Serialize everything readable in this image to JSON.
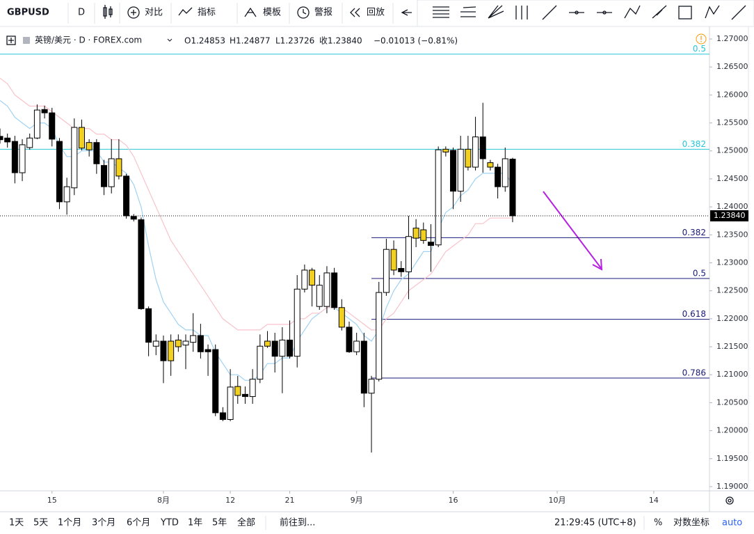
{
  "toolbar": {
    "symbol": "GBPUSD",
    "interval": "D",
    "compare": "对比",
    "indicators": "指标",
    "templates": "模板",
    "alerts": "警报",
    "replay": "回放"
  },
  "header": {
    "instrument": "英镑/美元 · D · FOREX.com",
    "open": "O1.24853",
    "high": "H1.24877",
    "low": "L1.23726",
    "close": "收1.23840",
    "change": "−0.01013 (−0.81%)"
  },
  "footer": {
    "ranges": [
      "1天",
      "5天",
      "1个月",
      "3个月",
      "6个月",
      "YTD",
      "1年",
      "5年",
      "全部"
    ],
    "goto": "前往到...",
    "clock": "21:29:45 (UTC+8)",
    "percent": "%",
    "log": "对数坐标",
    "auto": "auto"
  },
  "chart_data": {
    "type": "candlestick",
    "xlim": [
      0,
      95.5
    ],
    "xticks": [
      {
        "value": 7,
        "label": "15"
      },
      {
        "value": 22,
        "label": "8月"
      },
      {
        "value": 31,
        "label": "12"
      },
      {
        "value": 39,
        "label": "21"
      },
      {
        "value": 48,
        "label": "9月"
      },
      {
        "value": 61,
        "label": "16"
      },
      {
        "value": 75,
        "label": "10月"
      },
      {
        "value": 88,
        "label": "14"
      }
    ],
    "ylim": [
      1.18925,
      1.27224
    ],
    "yticks": [
      {
        "value": 1.27,
        "label": "1.27000"
      },
      {
        "value": 1.265,
        "label": "1.26500"
      },
      {
        "value": 1.26,
        "label": "1.26000"
      },
      {
        "value": 1.255,
        "label": "1.25500"
      },
      {
        "value": 1.25,
        "label": "1.25000"
      },
      {
        "value": 1.245,
        "label": "1.24500"
      },
      {
        "value": 1.24,
        "label": "1.24000"
      },
      {
        "value": 1.235,
        "label": "1.23500"
      },
      {
        "value": 1.23,
        "label": "1.23000"
      },
      {
        "value": 1.225,
        "label": "1.22500"
      },
      {
        "value": 1.22,
        "label": "1.22000"
      },
      {
        "value": 1.215,
        "label": "1.21500"
      },
      {
        "value": 1.21,
        "label": "1.21000"
      },
      {
        "value": 1.205,
        "label": "1.20500"
      },
      {
        "value": 1.2,
        "label": "1.20000"
      },
      {
        "value": 1.195,
        "label": "1.19500"
      },
      {
        "value": 1.19,
        "label": "1.19000"
      }
    ],
    "grid": false,
    "candles": {
      "x": [
        0,
        1,
        2,
        3,
        4,
        5,
        6,
        7,
        8,
        9,
        10,
        11,
        12,
        13,
        14,
        15,
        16,
        17,
        18,
        19,
        20,
        21,
        22,
        23,
        24,
        25,
        26,
        27,
        28,
        29,
        30,
        31,
        32,
        33,
        34,
        35,
        36,
        37,
        38,
        39,
        40,
        41,
        42,
        43,
        44,
        45,
        46,
        47,
        48,
        49,
        50,
        51,
        52,
        53,
        54,
        55,
        56,
        57,
        58,
        59,
        60,
        61,
        62,
        63,
        64,
        65,
        66,
        67,
        68,
        69
      ],
      "open": [
        1.2526,
        1.2523,
        1.2517,
        1.2461,
        1.2506,
        1.2523,
        1.2574,
        1.2568,
        1.2517,
        1.2409,
        1.2434,
        1.2542,
        1.2515,
        1.2515,
        1.2474,
        1.2436,
        1.2486,
        1.2455,
        1.2383,
        1.2377,
        1.2218,
        1.2151,
        1.216,
        1.216,
        1.2162,
        1.2153,
        1.2158,
        1.217,
        1.2145,
        1.2145,
        1.2032,
        1.202,
        1.2063,
        1.2065,
        1.2061,
        1.2092,
        1.2151,
        1.216,
        1.2133,
        1.2162,
        1.2133,
        1.2253,
        1.226,
        1.2222,
        1.2222,
        1.2282,
        1.222,
        1.2185,
        1.2141,
        1.216,
        1.2067,
        1.2092,
        1.2247,
        1.2287,
        1.229,
        1.2284,
        1.2344,
        1.234,
        1.2337,
        1.2332,
        1.2498,
        1.2501,
        1.2428,
        1.2471,
        1.2471,
        1.2525,
        1.2479,
        1.2471,
        1.2436,
        1.24853
      ],
      "high": [
        1.254,
        1.2531,
        1.2527,
        1.2521,
        1.2531,
        1.2583,
        1.2581,
        1.2577,
        1.2523,
        1.2452,
        1.2558,
        1.2556,
        1.2521,
        1.2521,
        1.2484,
        1.2521,
        1.2521,
        1.2459,
        1.2387,
        1.2381,
        1.2222,
        1.2172,
        1.217,
        1.2172,
        1.2172,
        1.2172,
        1.221,
        1.2191,
        1.2154,
        1.2154,
        1.2042,
        1.211,
        1.2098,
        1.2079,
        1.211,
        1.2172,
        1.2178,
        1.2175,
        1.2185,
        1.2197,
        1.2278,
        1.2297,
        1.2291,
        1.2278,
        1.2294,
        1.2291,
        1.2235,
        1.2195,
        1.2175,
        1.2175,
        1.2098,
        1.2266,
        1.2343,
        1.234,
        1.2303,
        1.2384,
        1.2378,
        1.2372,
        1.2369,
        1.2508,
        1.2508,
        1.2506,
        1.2527,
        1.2527,
        1.2561,
        1.2586,
        1.2484,
        1.2477,
        1.2506,
        1.24877
      ],
      "low": [
        1.2513,
        1.2506,
        1.2442,
        1.2446,
        1.2502,
        1.2521,
        1.2558,
        1.2508,
        1.2396,
        1.2386,
        1.2421,
        1.2501,
        1.249,
        1.2459,
        1.2421,
        1.2424,
        1.2449,
        1.2379,
        1.2374,
        1.2216,
        1.2133,
        1.2135,
        1.2085,
        1.2098,
        1.2141,
        1.211,
        1.2141,
        1.2129,
        1.2098,
        1.2026,
        1.2017,
        1.2017,
        1.2048,
        1.2048,
        1.2048,
        1.2085,
        1.2148,
        1.2104,
        1.2067,
        1.2129,
        1.2113,
        1.2247,
        1.2222,
        1.2216,
        1.221,
        1.2216,
        1.2179,
        1.2139,
        1.2135,
        1.2042,
        1.1961,
        1.2088,
        1.2241,
        1.2278,
        1.2275,
        1.2235,
        1.2328,
        1.2334,
        1.2284,
        1.2328,
        1.249,
        1.2396,
        1.2409,
        1.2465,
        1.2465,
        1.2461,
        1.2465,
        1.2415,
        1.2427,
        1.23726
      ],
      "close": [
        1.252,
        1.2516,
        1.2461,
        1.2511,
        1.2523,
        1.2573,
        1.2568,
        1.2521,
        1.2409,
        1.2436,
        1.2542,
        1.2505,
        1.2502,
        1.2477,
        1.2436,
        1.2486,
        1.2455,
        1.2384,
        1.2378,
        1.2218,
        1.2158,
        1.216,
        1.2125,
        1.2125,
        1.215,
        1.216,
        1.217,
        1.2141,
        1.2141,
        1.2032,
        1.202,
        1.2078,
        1.2079,
        1.2061,
        1.2092,
        1.2151,
        1.216,
        1.2133,
        1.2162,
        1.2133,
        1.2253,
        1.2287,
        1.2287,
        1.226,
        1.2282,
        1.222,
        1.2185,
        1.2141,
        1.216,
        1.2067,
        1.2092,
        1.2247,
        1.2324,
        1.2324,
        1.2284,
        1.2347,
        1.2362,
        1.2359,
        1.2331,
        1.2502,
        1.2503,
        1.2428,
        1.2503,
        1.2503,
        1.2525,
        1.2486,
        1.2471,
        1.2436,
        1.2486,
        1.2384
      ],
      "colors": [
        "#000000",
        "#000000",
        "#000000",
        "#ffffff",
        "#ffffff",
        "#ffffff",
        "#000000",
        "#000000",
        "#000000",
        "#ffffff",
        "#ffffff",
        "#f2d022",
        "#f2d022",
        "#000000",
        "#000000",
        "#ffffff",
        "#f2d022",
        "#000000",
        "#000000",
        "#000000",
        "#000000",
        "#ffffff",
        "#000000",
        "#f2d022",
        "#f2d022",
        "#ffffff",
        "#ffffff",
        "#000000",
        "#000000",
        "#000000",
        "#000000",
        "#ffffff",
        "#f2d022",
        "#000000",
        "#ffffff",
        "#ffffff",
        "#f2d022",
        "#000000",
        "#ffffff",
        "#000000",
        "#ffffff",
        "#ffffff",
        "#f2d022",
        "#ffffff",
        "#ffffff",
        "#000000",
        "#f2d022",
        "#000000",
        "#ffffff",
        "#000000",
        "#ffffff",
        "#ffffff",
        "#ffffff",
        "#f2d022",
        "#000000",
        "#ffffff",
        "#f2d022",
        "#f2d022",
        "#000000",
        "#ffffff",
        "#f2d022",
        "#000000",
        "#ffffff",
        "#f2d022",
        "#ffffff",
        "#000000",
        "#f2d022",
        "#000000",
        "#ffffff",
        "#000000"
      ]
    },
    "series": [
      {
        "color": "#9fd2f2",
        "values": [
          1.259,
          1.258,
          1.256,
          1.255,
          1.254,
          1.255,
          1.255,
          1.254,
          1.251,
          1.249,
          1.249,
          1.25,
          1.25,
          1.25,
          1.248,
          1.248,
          1.247,
          1.246,
          1.244,
          1.24,
          1.233,
          1.227,
          1.223,
          1.221,
          1.219,
          1.218,
          1.218,
          1.217,
          1.217,
          1.214,
          1.212,
          1.21,
          1.21,
          1.209,
          1.209,
          1.21,
          1.212,
          1.212,
          1.213,
          1.213,
          1.216,
          1.218,
          1.22,
          1.221,
          1.222,
          1.222,
          1.221,
          1.22,
          1.219,
          1.217,
          1.216,
          1.218,
          1.222,
          1.225,
          1.227,
          1.228,
          1.23,
          1.232,
          1.232,
          1.236,
          1.239,
          1.24,
          1.242,
          1.243,
          1.245,
          1.246,
          1.246,
          1.246,
          1.246,
          1.244
        ]
      },
      {
        "color": "#f8c3ca",
        "values": [
          1.263,
          1.262,
          1.26,
          1.259,
          1.258,
          1.258,
          1.258,
          1.257,
          1.256,
          1.255,
          1.254,
          1.254,
          1.254,
          1.253,
          1.253,
          1.252,
          1.252,
          1.251,
          1.249,
          1.246,
          1.243,
          1.24,
          1.237,
          1.234,
          1.232,
          1.23,
          1.228,
          1.226,
          1.224,
          1.222,
          1.22,
          1.219,
          1.218,
          1.218,
          1.218,
          1.218,
          1.219,
          1.219,
          1.219,
          1.219,
          1.22,
          1.22,
          1.221,
          1.221,
          1.222,
          1.222,
          1.222,
          1.221,
          1.22,
          1.219,
          1.218,
          1.218,
          1.22,
          1.221,
          1.223,
          1.225,
          1.226,
          1.227,
          1.228,
          1.23,
          1.232,
          1.233,
          1.234,
          1.235,
          1.237,
          1.237,
          1.238,
          1.238,
          1.238,
          1.238
        ]
      }
    ],
    "levels": [
      {
        "label": "0.5",
        "value": 1.2673,
        "x_start": 0,
        "color": "#26c6da"
      },
      {
        "label": "0.382",
        "value": 1.2503,
        "x_start": 0,
        "color": "#26c6da"
      },
      {
        "label": "0.382",
        "value": 1.2345,
        "x_start": 50,
        "color": "#1a1a7a"
      },
      {
        "label": "0.5",
        "value": 1.2272,
        "x_start": 50,
        "color": "#1a1a7a"
      },
      {
        "label": "0.618",
        "value": 1.2199,
        "x_start": 50,
        "color": "#1a1a7a"
      },
      {
        "label": "0.786",
        "value": 1.2094,
        "x_start": 50,
        "color": "#1a1a7a"
      }
    ],
    "last_price": {
      "value": 1.2384,
      "label": "1.23840"
    }
  }
}
